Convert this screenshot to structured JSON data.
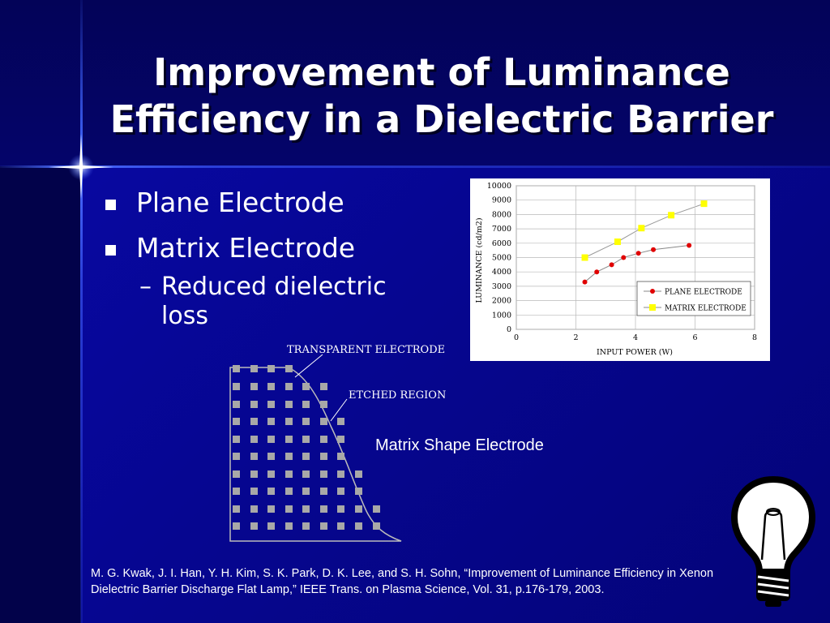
{
  "slide": {
    "title_line1": "Improvement of Luminance",
    "title_line2": "Efficiency in a Dielectric Barrier",
    "bullets": [
      {
        "label": "Plane Electrode"
      },
      {
        "label": "Matrix Electrode"
      }
    ],
    "sub_bullet_line1": "Reduced dielectric",
    "sub_bullet_line2": "loss",
    "sub_bullet_marker": "–",
    "figure_caption": "Matrix Shape Electrode",
    "citation": "M. G. Kwak, J. I. Han, Y. H. Kim, S. K. Park, D. K. Lee, and S. H. Sohn, “Improvement of Luminance Efficiency in Xenon Dielectric Barrier Discharge Flat Lamp,” IEEE Trans. on Plasma Science, Vol. 31, p.176-179, 2003.",
    "colors": {
      "background": "#04046e",
      "text": "#ffffff",
      "accent_line": "#4a6cff"
    }
  },
  "diagram": {
    "label_transparent": "TRANSPARENT ELECTRODE",
    "label_etched": "ETCHED REGION"
  },
  "chart_data": {
    "type": "line",
    "xlabel": "INPUT POWER (W)",
    "ylabel": "LUMINANCE (cd/m2)",
    "xlim": [
      0,
      8
    ],
    "ylim": [
      0,
      10000
    ],
    "xticks": [
      0,
      2,
      4,
      6,
      8
    ],
    "yticks": [
      0,
      1000,
      2000,
      3000,
      4000,
      5000,
      6000,
      7000,
      8000,
      9000,
      10000
    ],
    "grid": true,
    "legend_position": "bottom-right",
    "series": [
      {
        "name": "PLANE ELECTRODE",
        "color": "#e00000",
        "marker": "circle",
        "points": [
          [
            2.3,
            3300
          ],
          [
            2.7,
            4000
          ],
          [
            3.2,
            4500
          ],
          [
            3.6,
            5000
          ],
          [
            4.1,
            5300
          ],
          [
            4.6,
            5550
          ],
          [
            5.8,
            5850
          ]
        ]
      },
      {
        "name": "MATRIX ELECTRODE",
        "color": "#ffff00",
        "marker": "square",
        "points": [
          [
            2.3,
            5000
          ],
          [
            3.4,
            6100
          ],
          [
            4.2,
            7050
          ],
          [
            5.2,
            7950
          ],
          [
            6.3,
            8750
          ]
        ]
      }
    ]
  }
}
